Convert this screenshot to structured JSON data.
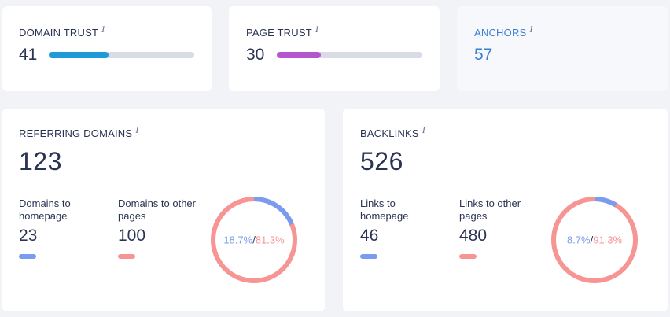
{
  "domain_trust": {
    "label": "DOMAIN TRUST",
    "info": "i",
    "value": "41",
    "progress": 0.41,
    "color": "#1e9bd7"
  },
  "page_trust": {
    "label": "PAGE TRUST",
    "info": "i",
    "value": "30",
    "progress": 0.3,
    "color": "#b457cf"
  },
  "anchors": {
    "label": "ANCHORS",
    "info": "i",
    "value": "57"
  },
  "referring_domains": {
    "label": "REFERRING DOMAINS",
    "info": "i",
    "total": "123",
    "home_label": "Domains to homepage",
    "home_value": "23",
    "other_label": "Domains to other pages",
    "other_value": "100",
    "home_pct": "18.7%",
    "other_pct": "81.3%",
    "home_fraction": 0.187,
    "separator": "/"
  },
  "backlinks": {
    "label": "BACKLINKS",
    "info": "i",
    "total": "526",
    "home_label": "Links to homepage",
    "home_value": "46",
    "other_label": "Links to other pages",
    "other_value": "480",
    "home_pct": "8.7%",
    "other_pct": "91.3%",
    "home_fraction": 0.087,
    "separator": "/"
  },
  "colors": {
    "home": "#7a9cf0",
    "other": "#f79595"
  }
}
